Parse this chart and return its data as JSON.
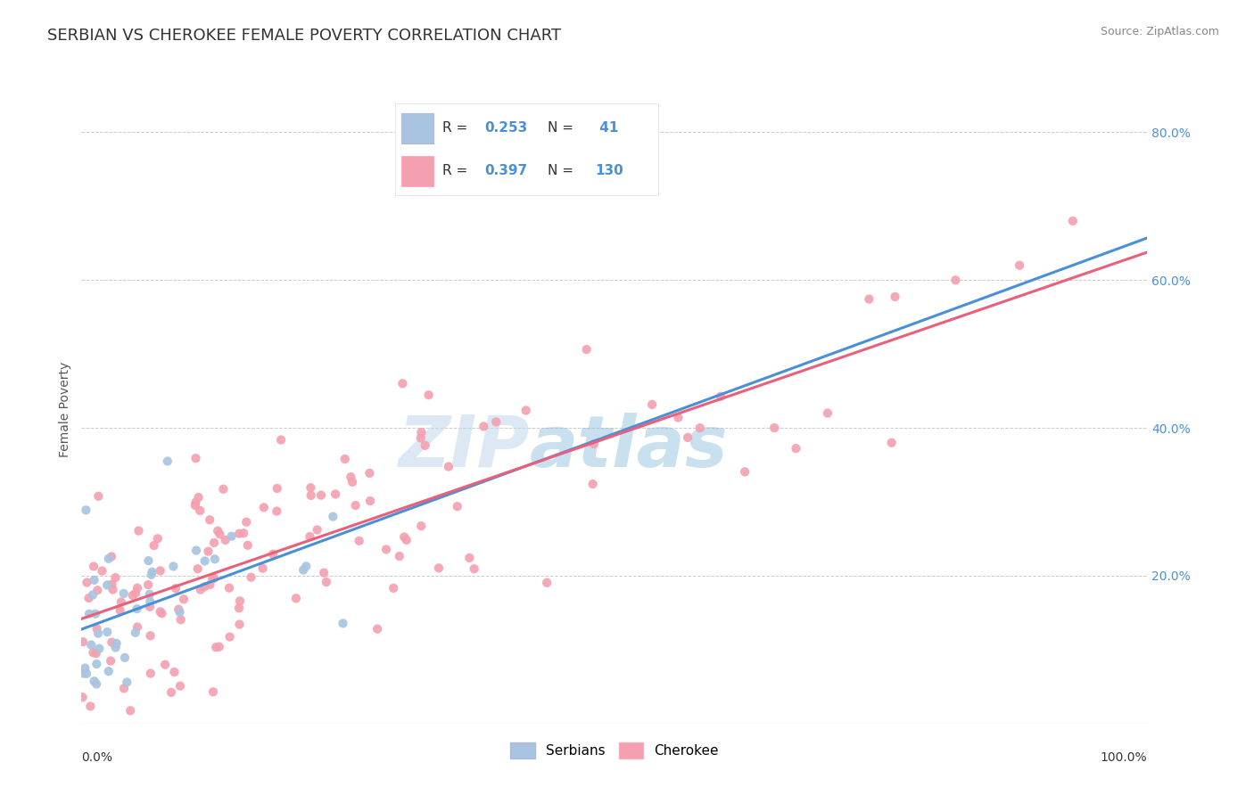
{
  "title": "SERBIAN VS CHEROKEE FEMALE POVERTY CORRELATION CHART",
  "source_text": "Source: ZipAtlas.com",
  "ylabel": "Female Poverty",
  "watermark_zip": "ZIP",
  "watermark_atlas": "atlas",
  "xlim": [
    0.0,
    1.0
  ],
  "ylim": [
    0.0,
    0.85
  ],
  "xtick_left": "0.0%",
  "xtick_right": "100.0%",
  "ytick_labels": [
    "20.0%",
    "40.0%",
    "60.0%",
    "80.0%"
  ],
  "ytick_vals": [
    0.2,
    0.4,
    0.6,
    0.8
  ],
  "serbian_color": "#A8C4E0",
  "cherokee_color": "#F4A0B0",
  "serbian_line_color": "#4A90D9",
  "cherokee_line_color": "#E8607A",
  "serbian_R": 0.253,
  "cherokee_R": 0.397,
  "serbian_N": 41,
  "cherokee_N": 130,
  "legend_serbian_label": "Serbians",
  "legend_cherokee_label": "Cherokee",
  "background_color": "#FFFFFF",
  "grid_color": "#CCCCCC",
  "title_fontsize": 13,
  "tick_color": "#4A90D9",
  "r_color": "#4A90D9"
}
